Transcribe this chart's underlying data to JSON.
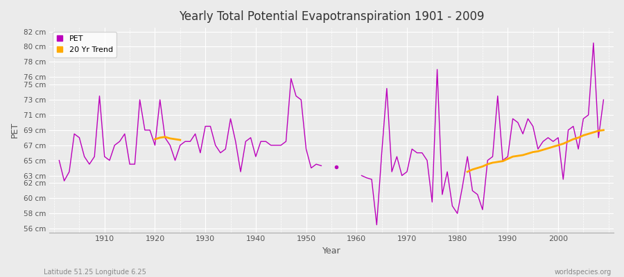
{
  "title": "Yearly Total Potential Evapotranspiration 1901 - 2009",
  "xlabel": "Year",
  "ylabel": "PET",
  "footnote_left": "Latitude 51.25 Longitude 6.25",
  "footnote_right": "worldspecies.org",
  "pet_color": "#bb00bb",
  "trend_color": "#ffaa00",
  "background_color": "#ebebeb",
  "grid_color": "#ffffff",
  "ylim": [
    56,
    82
  ],
  "yticks": [
    56,
    58,
    60,
    62,
    63,
    65,
    67,
    69,
    71,
    73,
    75,
    76,
    78,
    80,
    82
  ],
  "years": [
    1901,
    1902,
    1903,
    1904,
    1905,
    1906,
    1907,
    1908,
    1909,
    1910,
    1911,
    1912,
    1913,
    1914,
    1915,
    1916,
    1917,
    1918,
    1919,
    1920,
    1921,
    1922,
    1923,
    1924,
    1925,
    1926,
    1927,
    1928,
    1929,
    1930,
    1931,
    1932,
    1933,
    1934,
    1935,
    1936,
    1937,
    1938,
    1939,
    1940,
    1941,
    1942,
    1943,
    1944,
    1945,
    1946,
    1947,
    1948,
    1949,
    1950,
    1951,
    1952,
    1953,
    1954,
    1955,
    1956,
    1957,
    1958,
    1959,
    1960,
    1961,
    1962,
    1963,
    1964,
    1965,
    1966,
    1967,
    1968,
    1969,
    1970,
    1971,
    1972,
    1973,
    1974,
    1975,
    1976,
    1977,
    1978,
    1979,
    1980,
    1981,
    1982,
    1983,
    1984,
    1985,
    1986,
    1987,
    1988,
    1989,
    1990,
    1991,
    1992,
    1993,
    1994,
    1995,
    1996,
    1997,
    1998,
    1999,
    2000,
    2001,
    2002,
    2003,
    2004,
    2005,
    2006,
    2007,
    2008,
    2009
  ],
  "pet": [
    65.0,
    62.3,
    63.5,
    68.5,
    68.0,
    65.5,
    64.5,
    65.5,
    73.5,
    65.5,
    65.0,
    67.0,
    67.5,
    68.5,
    64.5,
    64.5,
    73.0,
    69.0,
    69.0,
    67.0,
    73.0,
    68.0,
    67.0,
    65.0,
    67.0,
    67.5,
    67.5,
    68.5,
    66.0,
    69.5,
    69.5,
    67.0,
    66.0,
    66.5,
    70.5,
    67.5,
    63.5,
    67.5,
    68.0,
    65.5,
    67.5,
    67.5,
    67.0,
    67.0,
    67.0,
    67.5,
    75.8,
    73.5,
    73.0,
    66.5,
    64.0,
    64.5,
    64.3,
    null,
    null,
    64.1,
    null,
    null,
    null,
    null,
    63.0,
    62.7,
    62.5,
    56.5,
    66.0,
    74.5,
    63.5,
    65.5,
    63.0,
    63.5,
    66.5,
    66.0,
    66.0,
    65.0,
    59.5,
    77.0,
    60.5,
    63.5,
    59.0,
    58.0,
    61.5,
    65.5,
    61.0,
    60.5,
    58.5,
    65.0,
    65.5,
    73.5,
    65.0,
    65.5,
    70.5,
    70.0,
    68.5,
    70.5,
    69.5,
    66.5,
    67.5,
    68.0,
    67.5,
    68.0,
    62.5,
    69.0,
    69.5,
    66.5,
    70.5,
    71.0,
    80.5,
    68.0,
    73.0
  ],
  "trend_years": [
    1920,
    1921,
    1922,
    1923,
    1924,
    1925,
    1982,
    1983,
    1984,
    1985,
    1986,
    1987,
    1988,
    1989,
    1990,
    1991,
    1992,
    1993,
    1994,
    1995,
    1996,
    1997,
    1998,
    1999,
    2000,
    2001,
    2002,
    2003,
    2004,
    2005,
    2006,
    2007,
    2008,
    2009
  ],
  "trend_vals": [
    67.8,
    68.0,
    68.1,
    67.9,
    67.8,
    67.7,
    63.5,
    63.8,
    64.0,
    64.2,
    64.5,
    64.7,
    64.8,
    64.9,
    65.2,
    65.5,
    65.6,
    65.7,
    65.9,
    66.1,
    66.2,
    66.4,
    66.6,
    66.8,
    67.0,
    67.2,
    67.5,
    67.8,
    68.0,
    68.3,
    68.5,
    68.7,
    68.9,
    69.0
  ]
}
